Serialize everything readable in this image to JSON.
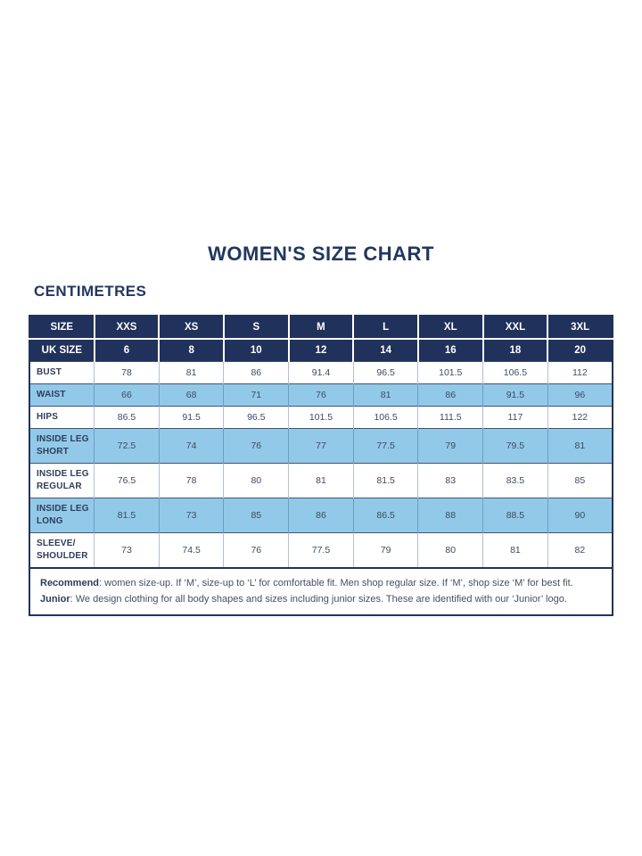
{
  "title": "WOMEN'S SIZE CHART",
  "unit_heading": "CENTIMETRES",
  "table": {
    "header_rows": [
      {
        "label": "SIZE",
        "values": [
          "XXS",
          "XS",
          "S",
          "M",
          "L",
          "XL",
          "XXL",
          "3XL"
        ]
      },
      {
        "label": "UK SIZE",
        "values": [
          "6",
          "8",
          "10",
          "12",
          "14",
          "16",
          "18",
          "20"
        ]
      }
    ],
    "rows": [
      {
        "label_lines": [
          "BUST"
        ],
        "shaded": false,
        "values": [
          "78",
          "81",
          "86",
          "91.4",
          "96.5",
          "101.5",
          "106.5",
          "112"
        ]
      },
      {
        "label_lines": [
          "WAIST"
        ],
        "shaded": true,
        "values": [
          "66",
          "68",
          "71",
          "76",
          "81",
          "86",
          "91.5",
          "96"
        ]
      },
      {
        "label_lines": [
          "HIPS"
        ],
        "shaded": false,
        "values": [
          "86.5",
          "91.5",
          "96.5",
          "101.5",
          "106.5",
          "111.5",
          "117",
          "122"
        ]
      },
      {
        "label_lines": [
          "INSIDE LEG",
          "SHORT"
        ],
        "shaded": true,
        "values": [
          "72.5",
          "74",
          "76",
          "77",
          "77.5",
          "79",
          "79.5",
          "81"
        ]
      },
      {
        "label_lines": [
          "INSIDE LEG",
          "REGULAR"
        ],
        "shaded": false,
        "values": [
          "76.5",
          "78",
          "80",
          "81",
          "81.5",
          "83",
          "83.5",
          "85"
        ]
      },
      {
        "label_lines": [
          "INSIDE LEG",
          "LONG"
        ],
        "shaded": true,
        "values": [
          "81.5",
          "73",
          "85",
          "86",
          "86.5",
          "88",
          "88.5",
          "90"
        ]
      },
      {
        "label_lines": [
          "SLEEVE/",
          "SHOULDER"
        ],
        "shaded": false,
        "values": [
          "73",
          "74.5",
          "76",
          "77.5",
          "79",
          "80",
          "81",
          "82"
        ]
      }
    ]
  },
  "notes": [
    {
      "label": "Recommend",
      "text": ": women size-up. If ‘M’, size-up to ‘L’ for comfortable fit. Men shop regular size. If ‘M’, shop size ‘M’ for best fit."
    },
    {
      "label": "Junior",
      "text": ": We design clothing for all body shapes and sizes including junior sizes. These are identified with our ‘Junior’ logo."
    }
  ],
  "colors": {
    "navy_header": "#20315b",
    "accent_blue_row": "#92c9e9",
    "heading_navy": "#22375f"
  }
}
